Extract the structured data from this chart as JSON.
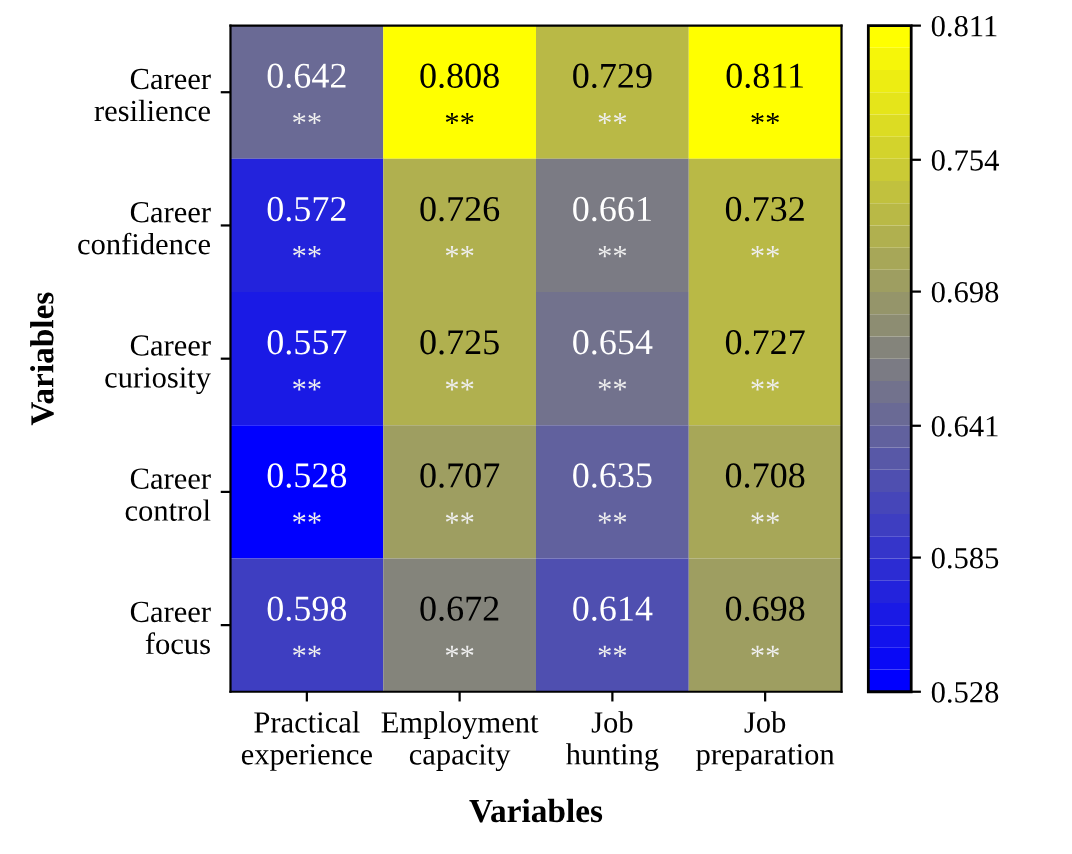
{
  "chart_data": {
    "type": "heatmap",
    "xlabel": "Variables",
    "ylabel": "Variables",
    "categories": [
      "Practical\nexperience",
      "Employment\ncapacity",
      "Job\nhunting",
      "Job\npreparation"
    ],
    "y_categories": [
      "Career\nresilience",
      "Career\nconfidence",
      "Career\ncuriosity",
      "Career\ncontrol",
      "Career\nfocus"
    ],
    "cells": [
      [
        0.642,
        0.808,
        0.729,
        0.811
      ],
      [
        0.572,
        0.726,
        0.661,
        0.732
      ],
      [
        0.557,
        0.725,
        0.654,
        0.727
      ],
      [
        0.528,
        0.707,
        0.635,
        0.708
      ],
      [
        0.598,
        0.672,
        0.614,
        0.698
      ]
    ],
    "cell_labels": [
      [
        "0.642\n**",
        "0.808\n**",
        "0.729\n**",
        "0.811\n**"
      ],
      [
        "0.572\n**",
        "0.726\n**",
        "0.661\n**",
        "0.732\n**"
      ],
      [
        "0.557\n**",
        "0.725\n**",
        "0.654\n**",
        "0.727\n**"
      ],
      [
        "0.528\n**",
        "0.707\n**",
        "0.635\n**",
        "0.708\n**"
      ],
      [
        "0.598\n**",
        "0.672\n**",
        "0.614\n**",
        "0.698\n**"
      ]
    ],
    "clim": [
      0.528,
      0.811
    ],
    "cticks": [
      0.528,
      0.585,
      0.641,
      0.698,
      0.754,
      0.811
    ]
  }
}
